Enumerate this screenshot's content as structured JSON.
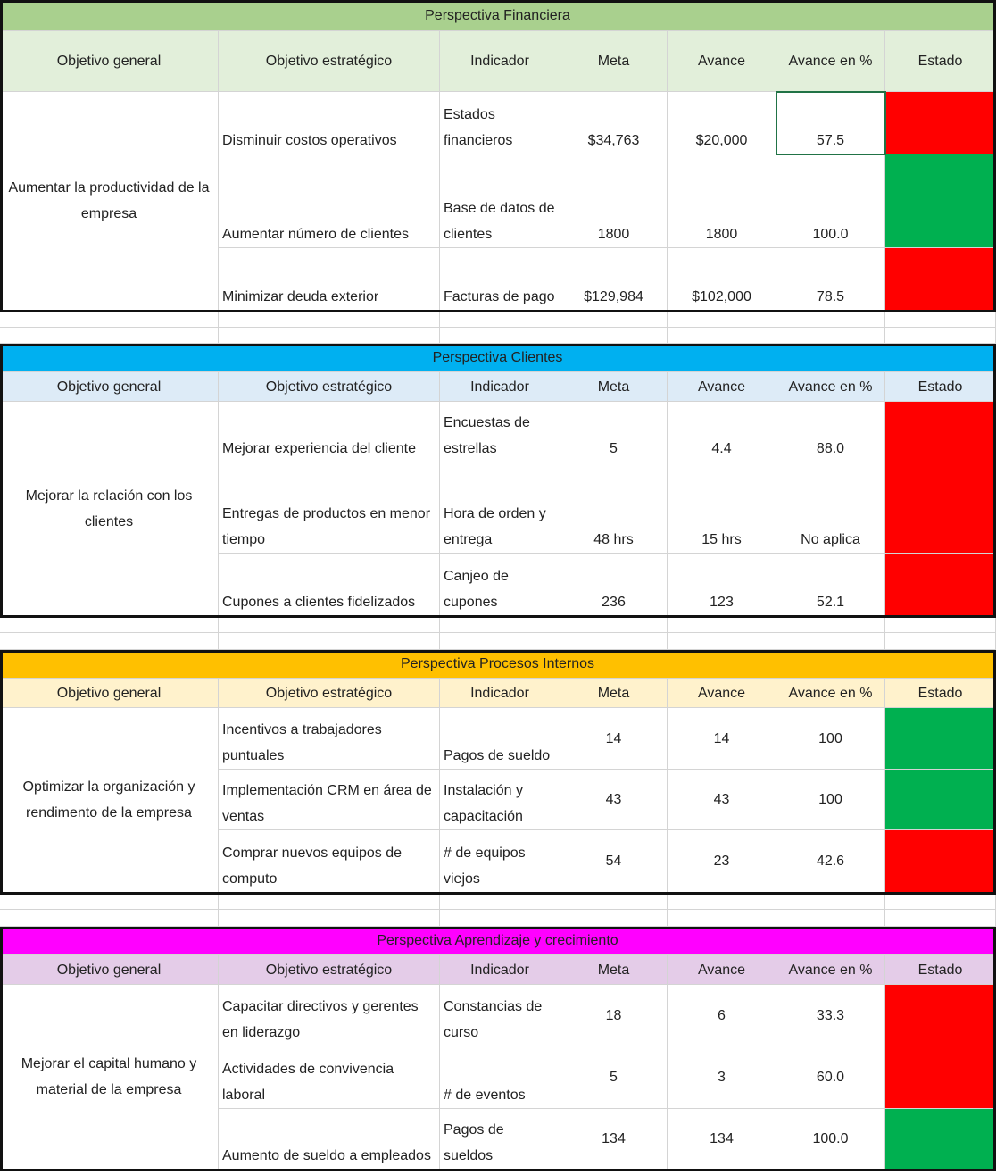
{
  "sections": [
    {
      "title": "Perspectiva Financiera",
      "title_color": "#a9d08e",
      "header_color": "#e2efda",
      "headers": [
        "Objetivo general",
        "Objetivo estratégico",
        "Indicador",
        "Meta",
        "Avance",
        "Avance en %",
        "Estado"
      ],
      "objetivo_general": "Aumentar la productividad de la empresa",
      "rows": [
        {
          "objetivo_estrategico": "Disminuir costos operativos",
          "indicador": "Estados financieros",
          "meta": "$34,763",
          "avance": "$20,000",
          "avance_pct": "57.5",
          "estado_color": "#ff0000"
        },
        {
          "objetivo_estrategico": "Aumentar número de clientes",
          "indicador": "Base de datos de clientes",
          "meta": "1800",
          "avance": "1800",
          "avance_pct": "100.0",
          "estado_color": "#00b050"
        },
        {
          "objetivo_estrategico": "Minimizar deuda exterior",
          "indicador": "Facturas de pago",
          "meta": "$129,984",
          "avance": "$102,000",
          "avance_pct": "78.5",
          "estado_color": "#ff0000"
        }
      ]
    },
    {
      "title": "Perspectiva Clientes",
      "title_color": "#00b0f0",
      "header_color": "#ddebf7",
      "headers": [
        "Objetivo general",
        "Objetivo estratégico",
        "Indicador",
        "Meta",
        "Avance",
        "Avance en %",
        "Estado"
      ],
      "objetivo_general": "Mejorar la relación con los clientes",
      "rows": [
        {
          "objetivo_estrategico": "Mejorar experiencia del cliente",
          "indicador": "Encuestas de estrellas",
          "meta": "5",
          "avance": "4.4",
          "avance_pct": "88.0",
          "estado_color": "#ff0000"
        },
        {
          "objetivo_estrategico": "Entregas  de productos en menor tiempo",
          "indicador": "Hora de orden y entrega",
          "meta": "48 hrs",
          "avance": "15 hrs",
          "avance_pct": "No aplica",
          "estado_color": "#ff0000"
        },
        {
          "objetivo_estrategico": "Cupones a clientes fidelizados",
          "indicador": "Canjeo de cupones",
          "meta": "236",
          "avance": "123",
          "avance_pct": "52.1",
          "estado_color": "#ff0000"
        }
      ]
    },
    {
      "title": "Perspectiva Procesos Internos",
      "title_color": "#ffc000",
      "header_color": "#fff2cc",
      "headers": [
        "Objetivo general",
        "Objetivo estratégico",
        "Indicador",
        "Meta",
        "Avance",
        "Avance en %",
        "Estado"
      ],
      "objetivo_general": "Optimizar la organización y rendimento de la empresa",
      "rows": [
        {
          "objetivo_estrategico": "Incentivos a trabajadores puntuales",
          "indicador": "Pagos de sueldo",
          "meta": "14",
          "avance": "14",
          "avance_pct": "100",
          "estado_color": "#00b050"
        },
        {
          "objetivo_estrategico": "Implementación CRM en área de ventas",
          "indicador": "Instalación y capacitación",
          "meta": "43",
          "avance": "43",
          "avance_pct": "100",
          "estado_color": "#00b050"
        },
        {
          "objetivo_estrategico": "Comprar nuevos equipos de computo",
          "indicador": "# de equipos viejos",
          "meta": "54",
          "avance": "23",
          "avance_pct": "42.6",
          "estado_color": "#ff0000"
        }
      ]
    },
    {
      "title": "Perspectiva Aprendizaje y crecimiento",
      "title_color": "#ff00ff",
      "header_color": "#e4cce8",
      "headers": [
        "Objetivo general",
        "Objetivo estratégico",
        "Indicador",
        "Meta",
        "Avance",
        "Avance en %",
        "Estado"
      ],
      "objetivo_general": "Mejorar el capital humano y material de la empresa",
      "rows": [
        {
          "objetivo_estrategico": "Capacitar directivos y gerentes en liderazgo",
          "indicador": "Constancias de curso",
          "meta": "18",
          "avance": "6",
          "avance_pct": "33.3",
          "estado_color": "#ff0000"
        },
        {
          "objetivo_estrategico": "Actividades de convivencia laboral",
          "indicador": "# de eventos",
          "meta": "5",
          "avance": "3",
          "avance_pct": "60.0",
          "estado_color": "#ff0000"
        },
        {
          "objetivo_estrategico": "Aumento de sueldo a empleados",
          "indicador": "Pagos de sueldos",
          "meta": "134",
          "avance": "134",
          "avance_pct": "100.0",
          "estado_color": "#00b050"
        }
      ]
    }
  ]
}
